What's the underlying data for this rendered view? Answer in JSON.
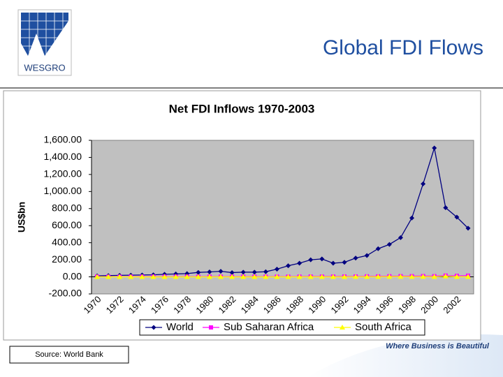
{
  "header": {
    "logo": "WESGRO",
    "title": "Global FDI Flows"
  },
  "chart_data": {
    "type": "line",
    "title": "Net FDI Inflows 1970-2003",
    "y_label": "US$bn",
    "categories": [
      "1970",
      null,
      "1972",
      null,
      "1974",
      null,
      "1976",
      null,
      "1978",
      null,
      "1980",
      null,
      "1982",
      null,
      "1984",
      null,
      "1986",
      null,
      "1988",
      null,
      "1990",
      null,
      "1992",
      null,
      "1994",
      null,
      "1996",
      null,
      "1998",
      null,
      "2000",
      null,
      "2002",
      null
    ],
    "series": [
      {
        "name": "World",
        "color": "#000080",
        "marker": "diamond",
        "values": [
          12,
          15,
          18,
          20,
          22,
          24,
          30,
          34,
          38,
          52,
          58,
          65,
          50,
          55,
          55,
          60,
          90,
          130,
          160,
          200,
          210,
          160,
          170,
          220,
          250,
          330,
          380,
          460,
          690,
          1090,
          1510,
          810,
          700,
          570
        ]
      },
      {
        "name": "Sub Saharan Africa",
        "color": "#ff00ff",
        "marker": "square",
        "values": [
          2,
          2,
          2,
          3,
          3,
          3,
          3,
          3,
          3,
          3,
          3,
          3,
          3,
          3,
          3,
          3,
          3,
          3,
          3,
          4,
          4,
          4,
          5,
          5,
          6,
          6,
          7,
          8,
          8,
          9,
          8,
          15,
          12,
          14
        ]
      },
      {
        "name": "South Africa",
        "color": "#ffff00",
        "marker": "triangle",
        "values": [
          0,
          0,
          0,
          0,
          0,
          0,
          0,
          0,
          0,
          0,
          0,
          0,
          0,
          0,
          0,
          0,
          0,
          0,
          0,
          0,
          0,
          0,
          0,
          1,
          1,
          1,
          2,
          3,
          1,
          2,
          1,
          7,
          1,
          1
        ]
      }
    ],
    "ylim": [
      -200,
      1600
    ],
    "yticks": [
      {
        "value": -200,
        "label": "-200.00"
      },
      {
        "value": 0,
        "label": "0.00"
      },
      {
        "value": 200,
        "label": "200.00"
      },
      {
        "value": 400,
        "label": "400.00"
      },
      {
        "value": 600,
        "label": "600.00"
      },
      {
        "value": 800,
        "label": "800.00"
      },
      {
        "value": 1000,
        "label": "1,000.00"
      },
      {
        "value": 1200,
        "label": "1,200.00"
      },
      {
        "value": 1400,
        "label": "1,400.00"
      },
      {
        "value": 1600,
        "label": "1,600.00"
      }
    ],
    "legend": "bottom"
  },
  "footer": {
    "source": "Source: World Bank",
    "tagline": "Where Business is Beautiful"
  }
}
